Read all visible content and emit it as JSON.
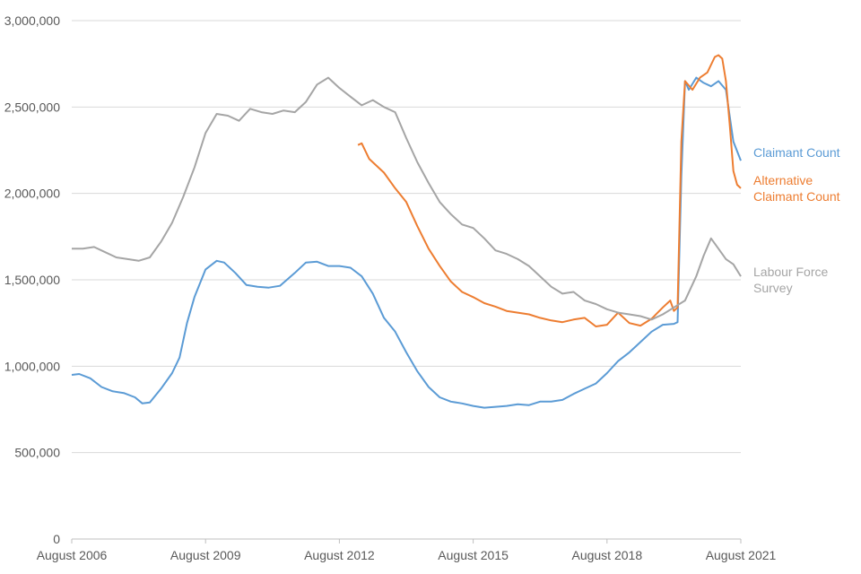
{
  "chart_data": {
    "type": "line",
    "title": "",
    "xlabel": "",
    "ylabel": "",
    "ylim": [
      0,
      3000000
    ],
    "xlim": [
      "2006-08",
      "2021-08"
    ],
    "grid": true,
    "y_ticks": [
      0,
      500000,
      1000000,
      1500000,
      2000000,
      2500000,
      3000000
    ],
    "y_tick_labels": [
      "0",
      "500,000",
      "1,000,000",
      "1,500,000",
      "2,000,000",
      "2,500,000",
      "3,000,000"
    ],
    "x_ticks": [
      "2006-08",
      "2009-08",
      "2012-08",
      "2015-08",
      "2018-08",
      "2021-08"
    ],
    "x_tick_labels": [
      "August 2006",
      "August 2009",
      "August 2012",
      "August 2015",
      "August 2018",
      "August 2021"
    ],
    "series": [
      {
        "name": "Claimant Count",
        "label_lines": [
          "Claimant Count"
        ],
        "color": "#5b9bd5",
        "points": [
          [
            "2006-08",
            950000
          ],
          [
            "2006-10",
            955000
          ],
          [
            "2007-01",
            930000
          ],
          [
            "2007-04",
            880000
          ],
          [
            "2007-07",
            855000
          ],
          [
            "2007-10",
            845000
          ],
          [
            "2008-01",
            820000
          ],
          [
            "2008-03",
            785000
          ],
          [
            "2008-05",
            790000
          ],
          [
            "2008-08",
            870000
          ],
          [
            "2008-11",
            960000
          ],
          [
            "2009-01",
            1050000
          ],
          [
            "2009-03",
            1250000
          ],
          [
            "2009-05",
            1400000
          ],
          [
            "2009-08",
            1560000
          ],
          [
            "2009-11",
            1610000
          ],
          [
            "2010-01",
            1600000
          ],
          [
            "2010-04",
            1540000
          ],
          [
            "2010-07",
            1470000
          ],
          [
            "2010-10",
            1460000
          ],
          [
            "2011-01",
            1455000
          ],
          [
            "2011-04",
            1465000
          ],
          [
            "2011-08",
            1540000
          ],
          [
            "2011-11",
            1600000
          ],
          [
            "2012-02",
            1605000
          ],
          [
            "2012-05",
            1580000
          ],
          [
            "2012-08",
            1580000
          ],
          [
            "2012-11",
            1570000
          ],
          [
            "2013-02",
            1520000
          ],
          [
            "2013-05",
            1420000
          ],
          [
            "2013-08",
            1280000
          ],
          [
            "2013-11",
            1200000
          ],
          [
            "2014-02",
            1080000
          ],
          [
            "2014-05",
            970000
          ],
          [
            "2014-08",
            880000
          ],
          [
            "2014-11",
            820000
          ],
          [
            "2015-02",
            795000
          ],
          [
            "2015-05",
            785000
          ],
          [
            "2015-08",
            770000
          ],
          [
            "2015-11",
            760000
          ],
          [
            "2016-02",
            765000
          ],
          [
            "2016-05",
            770000
          ],
          [
            "2016-08",
            780000
          ],
          [
            "2016-11",
            775000
          ],
          [
            "2017-02",
            795000
          ],
          [
            "2017-05",
            795000
          ],
          [
            "2017-08",
            805000
          ],
          [
            "2017-11",
            840000
          ],
          [
            "2018-02",
            870000
          ],
          [
            "2018-05",
            900000
          ],
          [
            "2018-08",
            960000
          ],
          [
            "2018-11",
            1030000
          ],
          [
            "2019-02",
            1080000
          ],
          [
            "2019-05",
            1140000
          ],
          [
            "2019-08",
            1200000
          ],
          [
            "2019-11",
            1240000
          ],
          [
            "2020-02",
            1245000
          ],
          [
            "2020-03",
            1255000
          ],
          [
            "2020-04",
            2100000
          ],
          [
            "2020-05",
            2650000
          ],
          [
            "2020-06",
            2600000
          ],
          [
            "2020-08",
            2670000
          ],
          [
            "2020-10",
            2640000
          ],
          [
            "2020-12",
            2620000
          ],
          [
            "2021-02",
            2650000
          ],
          [
            "2021-04",
            2600000
          ],
          [
            "2021-06",
            2300000
          ],
          [
            "2021-08",
            2190000
          ]
        ]
      },
      {
        "name": "Alternative Claimant Count",
        "label_lines": [
          "Alternative",
          "Claimant Count"
        ],
        "color": "#ed7d31",
        "points": [
          [
            "2013-01",
            2280000
          ],
          [
            "2013-02",
            2290000
          ],
          [
            "2013-04",
            2200000
          ],
          [
            "2013-08",
            2120000
          ],
          [
            "2013-11",
            2030000
          ],
          [
            "2014-02",
            1950000
          ],
          [
            "2014-05",
            1810000
          ],
          [
            "2014-08",
            1680000
          ],
          [
            "2014-11",
            1580000
          ],
          [
            "2015-02",
            1490000
          ],
          [
            "2015-05",
            1430000
          ],
          [
            "2015-08",
            1400000
          ],
          [
            "2015-11",
            1365000
          ],
          [
            "2016-02",
            1345000
          ],
          [
            "2016-05",
            1320000
          ],
          [
            "2016-08",
            1310000
          ],
          [
            "2016-11",
            1300000
          ],
          [
            "2017-02",
            1280000
          ],
          [
            "2017-05",
            1265000
          ],
          [
            "2017-08",
            1255000
          ],
          [
            "2017-11",
            1270000
          ],
          [
            "2018-02",
            1280000
          ],
          [
            "2018-05",
            1230000
          ],
          [
            "2018-08",
            1240000
          ],
          [
            "2018-11",
            1310000
          ],
          [
            "2019-02",
            1250000
          ],
          [
            "2019-05",
            1235000
          ],
          [
            "2019-08",
            1275000
          ],
          [
            "2019-11",
            1340000
          ],
          [
            "2020-01",
            1380000
          ],
          [
            "2020-02",
            1320000
          ],
          [
            "2020-03",
            1340000
          ],
          [
            "2020-04",
            2300000
          ],
          [
            "2020-05",
            2650000
          ],
          [
            "2020-07",
            2600000
          ],
          [
            "2020-09",
            2670000
          ],
          [
            "2020-11",
            2700000
          ],
          [
            "2021-01",
            2790000
          ],
          [
            "2021-02",
            2800000
          ],
          [
            "2021-03",
            2780000
          ],
          [
            "2021-04",
            2650000
          ],
          [
            "2021-05",
            2400000
          ],
          [
            "2021-06",
            2130000
          ],
          [
            "2021-07",
            2050000
          ],
          [
            "2021-08",
            2030000
          ]
        ]
      },
      {
        "name": "Labour Force Survey",
        "label_lines": [
          "Labour Force",
          "Survey"
        ],
        "color": "#a5a5a5",
        "points": [
          [
            "2006-08",
            1680000
          ],
          [
            "2006-11",
            1680000
          ],
          [
            "2007-02",
            1690000
          ],
          [
            "2007-05",
            1660000
          ],
          [
            "2007-08",
            1630000
          ],
          [
            "2007-11",
            1620000
          ],
          [
            "2008-02",
            1610000
          ],
          [
            "2008-05",
            1630000
          ],
          [
            "2008-08",
            1720000
          ],
          [
            "2008-11",
            1830000
          ],
          [
            "2009-02",
            1980000
          ],
          [
            "2009-05",
            2150000
          ],
          [
            "2009-08",
            2350000
          ],
          [
            "2009-11",
            2460000
          ],
          [
            "2010-02",
            2450000
          ],
          [
            "2010-05",
            2420000
          ],
          [
            "2010-08",
            2490000
          ],
          [
            "2010-11",
            2470000
          ],
          [
            "2011-02",
            2460000
          ],
          [
            "2011-05",
            2480000
          ],
          [
            "2011-08",
            2470000
          ],
          [
            "2011-11",
            2530000
          ],
          [
            "2012-02",
            2630000
          ],
          [
            "2012-05",
            2670000
          ],
          [
            "2012-08",
            2610000
          ],
          [
            "2012-11",
            2560000
          ],
          [
            "2013-02",
            2510000
          ],
          [
            "2013-05",
            2540000
          ],
          [
            "2013-08",
            2500000
          ],
          [
            "2013-11",
            2470000
          ],
          [
            "2014-02",
            2320000
          ],
          [
            "2014-05",
            2180000
          ],
          [
            "2014-08",
            2060000
          ],
          [
            "2014-11",
            1950000
          ],
          [
            "2015-02",
            1880000
          ],
          [
            "2015-05",
            1820000
          ],
          [
            "2015-08",
            1800000
          ],
          [
            "2015-11",
            1740000
          ],
          [
            "2016-02",
            1670000
          ],
          [
            "2016-05",
            1650000
          ],
          [
            "2016-08",
            1620000
          ],
          [
            "2016-11",
            1580000
          ],
          [
            "2017-02",
            1520000
          ],
          [
            "2017-05",
            1460000
          ],
          [
            "2017-08",
            1420000
          ],
          [
            "2017-11",
            1430000
          ],
          [
            "2018-02",
            1380000
          ],
          [
            "2018-05",
            1360000
          ],
          [
            "2018-08",
            1330000
          ],
          [
            "2018-11",
            1310000
          ],
          [
            "2019-02",
            1300000
          ],
          [
            "2019-05",
            1290000
          ],
          [
            "2019-08",
            1270000
          ],
          [
            "2019-11",
            1300000
          ],
          [
            "2020-02",
            1340000
          ],
          [
            "2020-05",
            1380000
          ],
          [
            "2020-08",
            1520000
          ],
          [
            "2020-10",
            1640000
          ],
          [
            "2020-12",
            1740000
          ],
          [
            "2021-02",
            1680000
          ],
          [
            "2021-04",
            1620000
          ],
          [
            "2021-06",
            1590000
          ],
          [
            "2021-08",
            1520000
          ]
        ]
      }
    ]
  }
}
